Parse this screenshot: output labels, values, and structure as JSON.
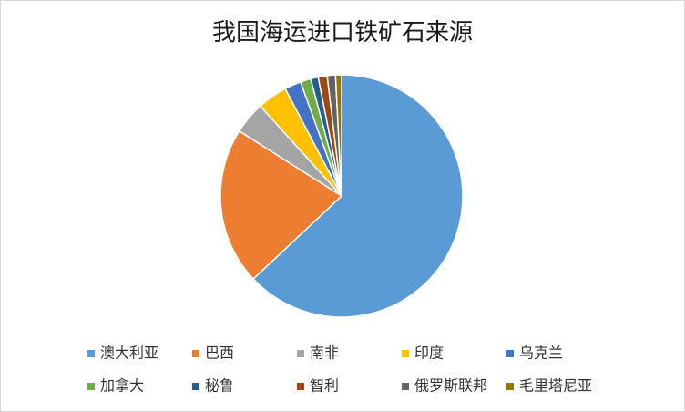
{
  "chart_data": {
    "type": "pie",
    "title": "我国海运进口铁矿石来源",
    "categories": [
      "澳大利亚",
      "巴西",
      "南非",
      "印度",
      "乌克兰",
      "加拿大",
      "秘鲁",
      "智利",
      "俄罗斯联邦",
      "毛里塔尼亚"
    ],
    "values": [
      63,
      21,
      4.3,
      4,
      2.2,
      1.4,
      1.0,
      1.2,
      1.1,
      0.8
    ],
    "colors": [
      "#5b9bd5",
      "#ed7d31",
      "#a5a5a5",
      "#ffc000",
      "#4472c4",
      "#70ad47",
      "#255e91",
      "#9e480e",
      "#636363",
      "#997300"
    ],
    "legend": "bottom"
  }
}
